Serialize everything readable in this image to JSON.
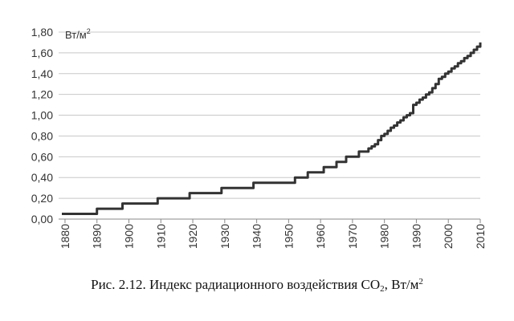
{
  "chart_data": {
    "type": "line",
    "unit_label": "Вт/м",
    "unit_sup": "2",
    "ylim": [
      0,
      1.8
    ],
    "yticks": [
      "0,00",
      "0,20",
      "0,40",
      "0,60",
      "0,80",
      "1,00",
      "1,20",
      "1,40",
      "1,60",
      "1,80"
    ],
    "yticks_values": [
      0,
      0.2,
      0.4,
      0.6,
      0.8,
      1.0,
      1.2,
      1.4,
      1.6,
      1.8
    ],
    "xlim": [
      1878,
      2010
    ],
    "xticks": [
      "1880",
      "1890",
      "1900",
      "1910",
      "1920",
      "1930",
      "1940",
      "1950",
      "1960",
      "1970",
      "1980",
      "1990",
      "2000",
      "2010"
    ],
    "xticks_values": [
      1880,
      1890,
      1900,
      1910,
      1920,
      1930,
      1940,
      1950,
      1960,
      1970,
      1980,
      1990,
      2000,
      2010
    ],
    "grid": true,
    "line_color": "#333333",
    "series": [
      {
        "x": [
          1879,
          1889,
          1890,
          1897,
          1898,
          1908,
          1909,
          1918,
          1919,
          1928,
          1929,
          1938,
          1939,
          1951,
          1952,
          1955,
          1956,
          1960,
          1961,
          1964,
          1965,
          1967,
          1968,
          1971,
          1972,
          1974,
          1975,
          1976,
          1977,
          1978,
          1979,
          1980,
          1981,
          1982,
          1983,
          1984,
          1985,
          1986,
          1987,
          1988,
          1989,
          1990,
          1991,
          1992,
          1993,
          1994,
          1995,
          1996,
          1997,
          1998,
          1999,
          2000,
          2001,
          2002,
          2003,
          2004,
          2005,
          2006,
          2007,
          2008,
          2009,
          2010
        ],
        "y": [
          0.05,
          0.05,
          0.1,
          0.1,
          0.15,
          0.15,
          0.2,
          0.2,
          0.25,
          0.25,
          0.3,
          0.3,
          0.35,
          0.35,
          0.4,
          0.4,
          0.45,
          0.45,
          0.5,
          0.5,
          0.55,
          0.55,
          0.6,
          0.6,
          0.65,
          0.65,
          0.68,
          0.7,
          0.72,
          0.76,
          0.8,
          0.82,
          0.85,
          0.88,
          0.9,
          0.93,
          0.95,
          0.98,
          1.0,
          1.02,
          1.1,
          1.12,
          1.15,
          1.17,
          1.2,
          1.22,
          1.26,
          1.3,
          1.35,
          1.37,
          1.4,
          1.42,
          1.45,
          1.47,
          1.5,
          1.52,
          1.55,
          1.57,
          1.6,
          1.63,
          1.66,
          1.7
        ]
      }
    ]
  },
  "caption": {
    "prefix": "Рис. 2.12. Индекс радиационного воздействия CO",
    "sub": "2",
    "middle": ", Вт/м",
    "sup": "2"
  }
}
